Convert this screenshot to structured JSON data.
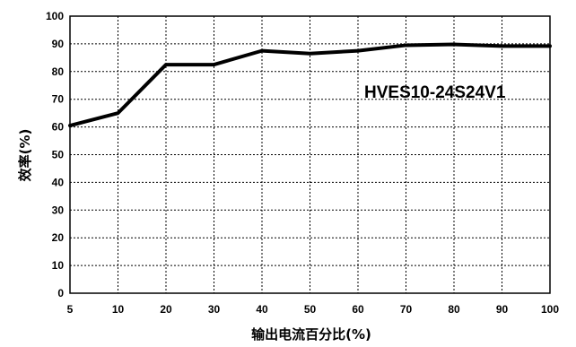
{
  "chart_data": {
    "type": "line",
    "xlabel": "输出电流百分比(%)",
    "ylabel": "效率(%)",
    "annotation": "HVES10-24S24V1",
    "x_categories": [
      "5",
      "10",
      "20",
      "30",
      "40",
      "50",
      "60",
      "70",
      "80",
      "90",
      "100"
    ],
    "y_ticks": [
      "0",
      "10",
      "20",
      "30",
      "40",
      "50",
      "60",
      "70",
      "80",
      "90",
      "100"
    ],
    "ylim": [
      0,
      100
    ],
    "grid": true,
    "series": [
      {
        "values": [
          60.5,
          65,
          82.5,
          82.5,
          87.5,
          86.5,
          87.5,
          89.5,
          89.8,
          89.2,
          89.2
        ],
        "color": "#000000"
      }
    ]
  }
}
